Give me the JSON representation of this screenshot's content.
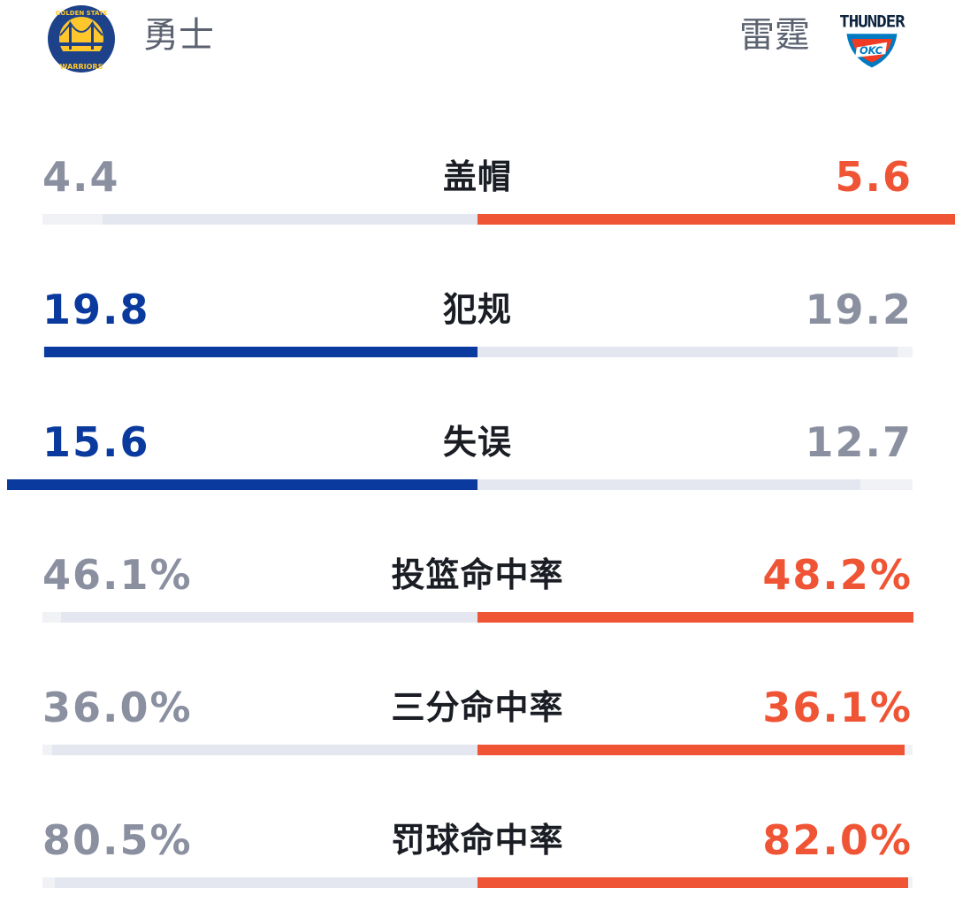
{
  "teams": {
    "home": {
      "name": "勇士",
      "logo_text_top": "GOLDEN STATE",
      "logo_text_bottom": "WARRIORS"
    },
    "away": {
      "name": "雷霆",
      "logo_text_top": "THUNDER",
      "logo_text_inner": "OKC"
    }
  },
  "colors": {
    "home_accent": "#0a3a9e",
    "away_accent": "#ef5435",
    "muted_value": "#8a90a0",
    "bar_track": "#f1f2f6",
    "bar_loser": "#e4e7f0",
    "label": "#1a1d24"
  },
  "stats": [
    {
      "label": "盖帽",
      "home": "4.4",
      "away": "5.6",
      "home_num": 4.4,
      "away_num": 5.6,
      "leader": "away"
    },
    {
      "label": "犯规",
      "home": "19.8",
      "away": "19.2",
      "home_num": 19.8,
      "away_num": 19.2,
      "leader": "home"
    },
    {
      "label": "失误",
      "home": "15.6",
      "away": "12.7",
      "home_num": 15.6,
      "away_num": 12.7,
      "leader": "home"
    },
    {
      "label": "投篮命中率",
      "home": "46.1%",
      "away": "48.2%",
      "home_num": 46.1,
      "away_num": 48.2,
      "leader": "away"
    },
    {
      "label": "三分命中率",
      "home": "36.0%",
      "away": "36.1%",
      "home_num": 36.0,
      "away_num": 36.1,
      "leader": "away"
    },
    {
      "label": "罚球命中率",
      "home": "80.5%",
      "away": "82.0%",
      "home_num": 80.5,
      "away_num": 82.0,
      "leader": "away"
    }
  ]
}
